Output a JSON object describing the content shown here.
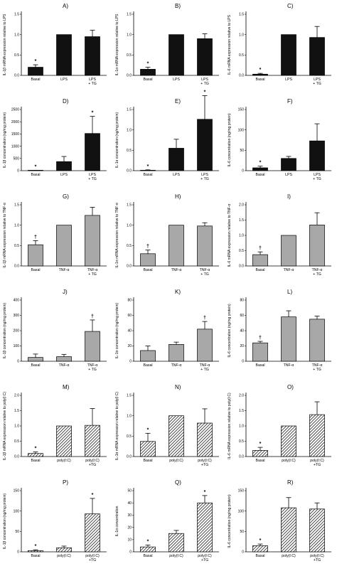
{
  "chart_data": [
    {
      "type": "bar",
      "panel": "A)",
      "ylabel": "IL-1β mRNA expression relative to LPS",
      "yticks": [
        "0.0",
        "0.5",
        "1.0",
        "1.5"
      ],
      "ylim": [
        0,
        1.5
      ],
      "categories": [
        [
          "Basal"
        ],
        [
          "LPS"
        ],
        [
          "LPS",
          "+ TG"
        ]
      ],
      "values": [
        0.2,
        1.0,
        0.95
      ],
      "errors": [
        0.06,
        0,
        0.16
      ],
      "markers": [
        "*",
        "",
        ""
      ],
      "fill": "black"
    },
    {
      "type": "bar",
      "panel": "B)",
      "ylabel": "IL-1α mRNA expression relative to LPS",
      "yticks": [
        "0.0",
        "0.5",
        "1.0",
        "1.5"
      ],
      "ylim": [
        0,
        1.5
      ],
      "categories": [
        [
          "Basal"
        ],
        [
          "LPS"
        ],
        [
          "LPS",
          "+ TG"
        ]
      ],
      "values": [
        0.15,
        1.0,
        0.9
      ],
      "errors": [
        0.05,
        0,
        0.12
      ],
      "markers": [
        "*",
        "",
        ""
      ],
      "fill": "black"
    },
    {
      "type": "bar",
      "panel": "C)",
      "ylabel": "IL-6 mRNA expression relative to LPS",
      "yticks": [
        "0.0",
        "0.5",
        "1.0",
        "1.5"
      ],
      "ylim": [
        0,
        1.5
      ],
      "categories": [
        [
          "Basal"
        ],
        [
          "LPS"
        ],
        [
          "LPS",
          "+ TG"
        ]
      ],
      "values": [
        0.03,
        1.0,
        0.93
      ],
      "errors": [
        0.02,
        0,
        0.27
      ],
      "markers": [
        "*",
        "",
        ""
      ],
      "fill": "black"
    },
    {
      "type": "bar",
      "panel": "D)",
      "ylabel": "IL-1β concentration (ng/mg protein)",
      "yticks": [
        "0",
        "500",
        "1000",
        "1500",
        "2000",
        "2500"
      ],
      "ylim": [
        0,
        2500
      ],
      "categories": [
        [
          "Basal"
        ],
        [
          "LPS"
        ],
        [
          "LPS",
          "+ TG"
        ]
      ],
      "values": [
        10,
        370,
        1520
      ],
      "errors": [
        5,
        210,
        700
      ],
      "markers": [
        "*",
        "",
        "*"
      ],
      "fill": "black"
    },
    {
      "type": "bar",
      "panel": "E)",
      "ylabel": "IL-1α concentration (ng/mg protein)",
      "yticks": [
        "0.0",
        "0.5",
        "1.0",
        "1.5"
      ],
      "ylim": [
        0,
        1.5
      ],
      "categories": [
        [
          "Basal"
        ],
        [
          "LPS"
        ],
        [
          "LPS",
          "+ TG"
        ]
      ],
      "values": [
        0.01,
        0.55,
        1.26
      ],
      "errors": [
        0.01,
        0.22,
        0.58
      ],
      "markers": [
        "*",
        "",
        "*"
      ],
      "fill": "black"
    },
    {
      "type": "bar",
      "panel": "F)",
      "ylabel": "IL-6 concentration (ng/mg protein)",
      "yticks": [
        "0",
        "50",
        "100",
        "150"
      ],
      "ylim": [
        0,
        150
      ],
      "categories": [
        [
          "Basal"
        ],
        [
          "LPS"
        ],
        [
          "LPS",
          "+ TG"
        ]
      ],
      "values": [
        7,
        30,
        73
      ],
      "errors": [
        4,
        5,
        42
      ],
      "markers": [
        "*",
        "",
        ""
      ],
      "fill": "black"
    },
    {
      "type": "bar",
      "panel": "G)",
      "ylabel": "IL-1β mRNA expression relative to TNF-α",
      "yticks": [
        "0.0",
        "0.5",
        "1.0",
        "1.5"
      ],
      "ylim": [
        0,
        1.5
      ],
      "categories": [
        [
          "Basal"
        ],
        [
          "TNF-α"
        ],
        [
          "TNF-α",
          "+ TG"
        ]
      ],
      "values": [
        0.52,
        1.0,
        1.24
      ],
      "errors": [
        0.1,
        0,
        0.2
      ],
      "markers": [
        "†",
        "",
        ""
      ],
      "fill": "grey"
    },
    {
      "type": "bar",
      "panel": "H)",
      "ylabel": "IL-1α mRNA expression relative to TNF-α",
      "yticks": [
        "0.0",
        "0.5",
        "1.0",
        "1.5"
      ],
      "ylim": [
        0,
        1.5
      ],
      "categories": [
        [
          "Basal"
        ],
        [
          "TNF-α"
        ],
        [
          "TNF-α",
          "+ TG"
        ]
      ],
      "values": [
        0.3,
        1.0,
        0.98
      ],
      "errors": [
        0.09,
        0,
        0.08
      ],
      "markers": [
        "†",
        "",
        ""
      ],
      "fill": "grey"
    },
    {
      "type": "bar",
      "panel": "I)",
      "ylabel": "IL-6 mRNA expression relative to TNF-α",
      "yticks": [
        "0.0",
        "0.5",
        "1.0",
        "1.5",
        "2.0"
      ],
      "ylim": [
        0,
        2.0
      ],
      "categories": [
        [
          "Basal"
        ],
        [
          "TNF-α"
        ],
        [
          "TNF-α",
          "+ TG"
        ]
      ],
      "values": [
        0.37,
        1.0,
        1.34
      ],
      "errors": [
        0.09,
        0,
        0.4
      ],
      "markers": [
        "†",
        "",
        ""
      ],
      "fill": "grey"
    },
    {
      "type": "bar",
      "panel": "J)",
      "ylabel": "IL-1β concentration (ng/mg protein)",
      "yticks": [
        "0",
        "100",
        "200",
        "300",
        "400"
      ],
      "ylim": [
        0,
        400
      ],
      "categories": [
        [
          "Basal"
        ],
        [
          "TNF-α"
        ],
        [
          "TNF-α",
          "+ TG"
        ]
      ],
      "values": [
        25,
        30,
        195
      ],
      "errors": [
        22,
        15,
        75
      ],
      "markers": [
        "",
        "",
        "†"
      ],
      "fill": "grey"
    },
    {
      "type": "bar",
      "panel": "K)",
      "ylabel": "IL-1α concentration (ng/mg protein)",
      "yticks": [
        "0",
        "20",
        "40",
        "60",
        "80"
      ],
      "ylim": [
        0,
        80
      ],
      "categories": [
        [
          "Basal"
        ],
        [
          "TNF-α"
        ],
        [
          "TNF-α",
          "+ TG"
        ]
      ],
      "values": [
        14,
        22,
        42
      ],
      "errors": [
        6,
        3,
        10
      ],
      "markers": [
        "",
        "",
        "†"
      ],
      "fill": "grey"
    },
    {
      "type": "bar",
      "panel": "L)",
      "ylabel": "IL-6 concentration (ng/mg protein)",
      "yticks": [
        "0",
        "20",
        "40",
        "60",
        "80"
      ],
      "ylim": [
        0,
        80
      ],
      "categories": [
        [
          "Basal"
        ],
        [
          "TNF-α"
        ],
        [
          "TNF-α",
          "+ TG"
        ]
      ],
      "values": [
        24,
        58,
        55
      ],
      "errors": [
        2,
        8,
        4
      ],
      "markers": [
        "†",
        "",
        ""
      ],
      "fill": "grey"
    },
    {
      "type": "bar",
      "panel": "M)",
      "ylabel": "IL-1β mRNA expression relative to poly(I:C)",
      "yticks": [
        "0.0",
        "0.5",
        "1.0",
        "1.5",
        "2.0"
      ],
      "ylim": [
        0,
        2.0
      ],
      "categories": [
        [
          "Basal"
        ],
        [
          "poly(I:C)"
        ],
        [
          "poly(I:C)",
          "+TG"
        ]
      ],
      "values": [
        0.1,
        1.0,
        1.02
      ],
      "errors": [
        0.05,
        0,
        0.55
      ],
      "markers": [
        "*",
        "",
        ""
      ],
      "fill": "hatch"
    },
    {
      "type": "bar",
      "panel": "N)",
      "ylabel": "IL-1α mRNA expression relative to poly(I:C)",
      "yticks": [
        "0.0",
        "0.5",
        "1.0",
        "1.5"
      ],
      "ylim": [
        0,
        1.5
      ],
      "categories": [
        [
          "Basal"
        ],
        [
          "poly(I:C)"
        ],
        [
          "poly(I:C)",
          "+TG"
        ]
      ],
      "values": [
        0.37,
        1.0,
        0.82
      ],
      "errors": [
        0.2,
        0,
        0.35
      ],
      "markers": [
        "*",
        "",
        ""
      ],
      "fill": "hatch"
    },
    {
      "type": "bar",
      "panel": "O)",
      "ylabel": "IL-6 mRNA expression relative to poly(I:C)",
      "yticks": [
        "0.0",
        "0.5",
        "1.0",
        "1.5",
        "2.0"
      ],
      "ylim": [
        0,
        2.0
      ],
      "categories": [
        [
          "Basal"
        ],
        [
          "poly(I:C)"
        ],
        [
          "poly(I:C)",
          "+TG"
        ]
      ],
      "values": [
        0.2,
        1.0,
        1.37
      ],
      "errors": [
        0.1,
        0,
        0.42
      ],
      "markers": [
        "*",
        "",
        ""
      ],
      "fill": "hatch"
    },
    {
      "type": "bar",
      "panel": "P)",
      "ylabel": "IL-1β concentration (ng/mg protein)",
      "yticks": [
        "0",
        "50",
        "100",
        "150"
      ],
      "ylim": [
        0,
        150
      ],
      "categories": [
        [
          "Basal"
        ],
        [
          "poly(I:C)"
        ],
        [
          "poly(I:C)",
          "+TG"
        ]
      ],
      "values": [
        3,
        10,
        93
      ],
      "errors": [
        2,
        4,
        38
      ],
      "markers": [
        "*",
        "",
        "*"
      ],
      "fill": "hatch"
    },
    {
      "type": "bar",
      "panel": "Q)",
      "ylabel": "IL-1α concentration",
      "yticks": [
        "0",
        "10",
        "20",
        "30",
        "40",
        "50"
      ],
      "ylim": [
        0,
        50
      ],
      "categories": [
        [
          "Basal"
        ],
        [
          "poly(I:C)"
        ],
        [
          "poly(I:C)",
          "+TG"
        ]
      ],
      "values": [
        4,
        15,
        40
      ],
      "errors": [
        1.5,
        2.5,
        6
      ],
      "markers": [
        "*",
        "",
        "*"
      ],
      "fill": "hatch"
    },
    {
      "type": "bar",
      "panel": "R)",
      "ylabel": "IL-6 concentration (ng/mg protein)",
      "yticks": [
        "0",
        "50",
        "100",
        "150"
      ],
      "ylim": [
        0,
        150
      ],
      "categories": [
        [
          "Basal"
        ],
        [
          "poly(I:C)"
        ],
        [
          "poly(I:C)",
          "+TG"
        ]
      ],
      "values": [
        15,
        108,
        105
      ],
      "errors": [
        4,
        25,
        15
      ],
      "markers": [
        "*",
        "",
        ""
      ],
      "fill": "hatch"
    }
  ]
}
